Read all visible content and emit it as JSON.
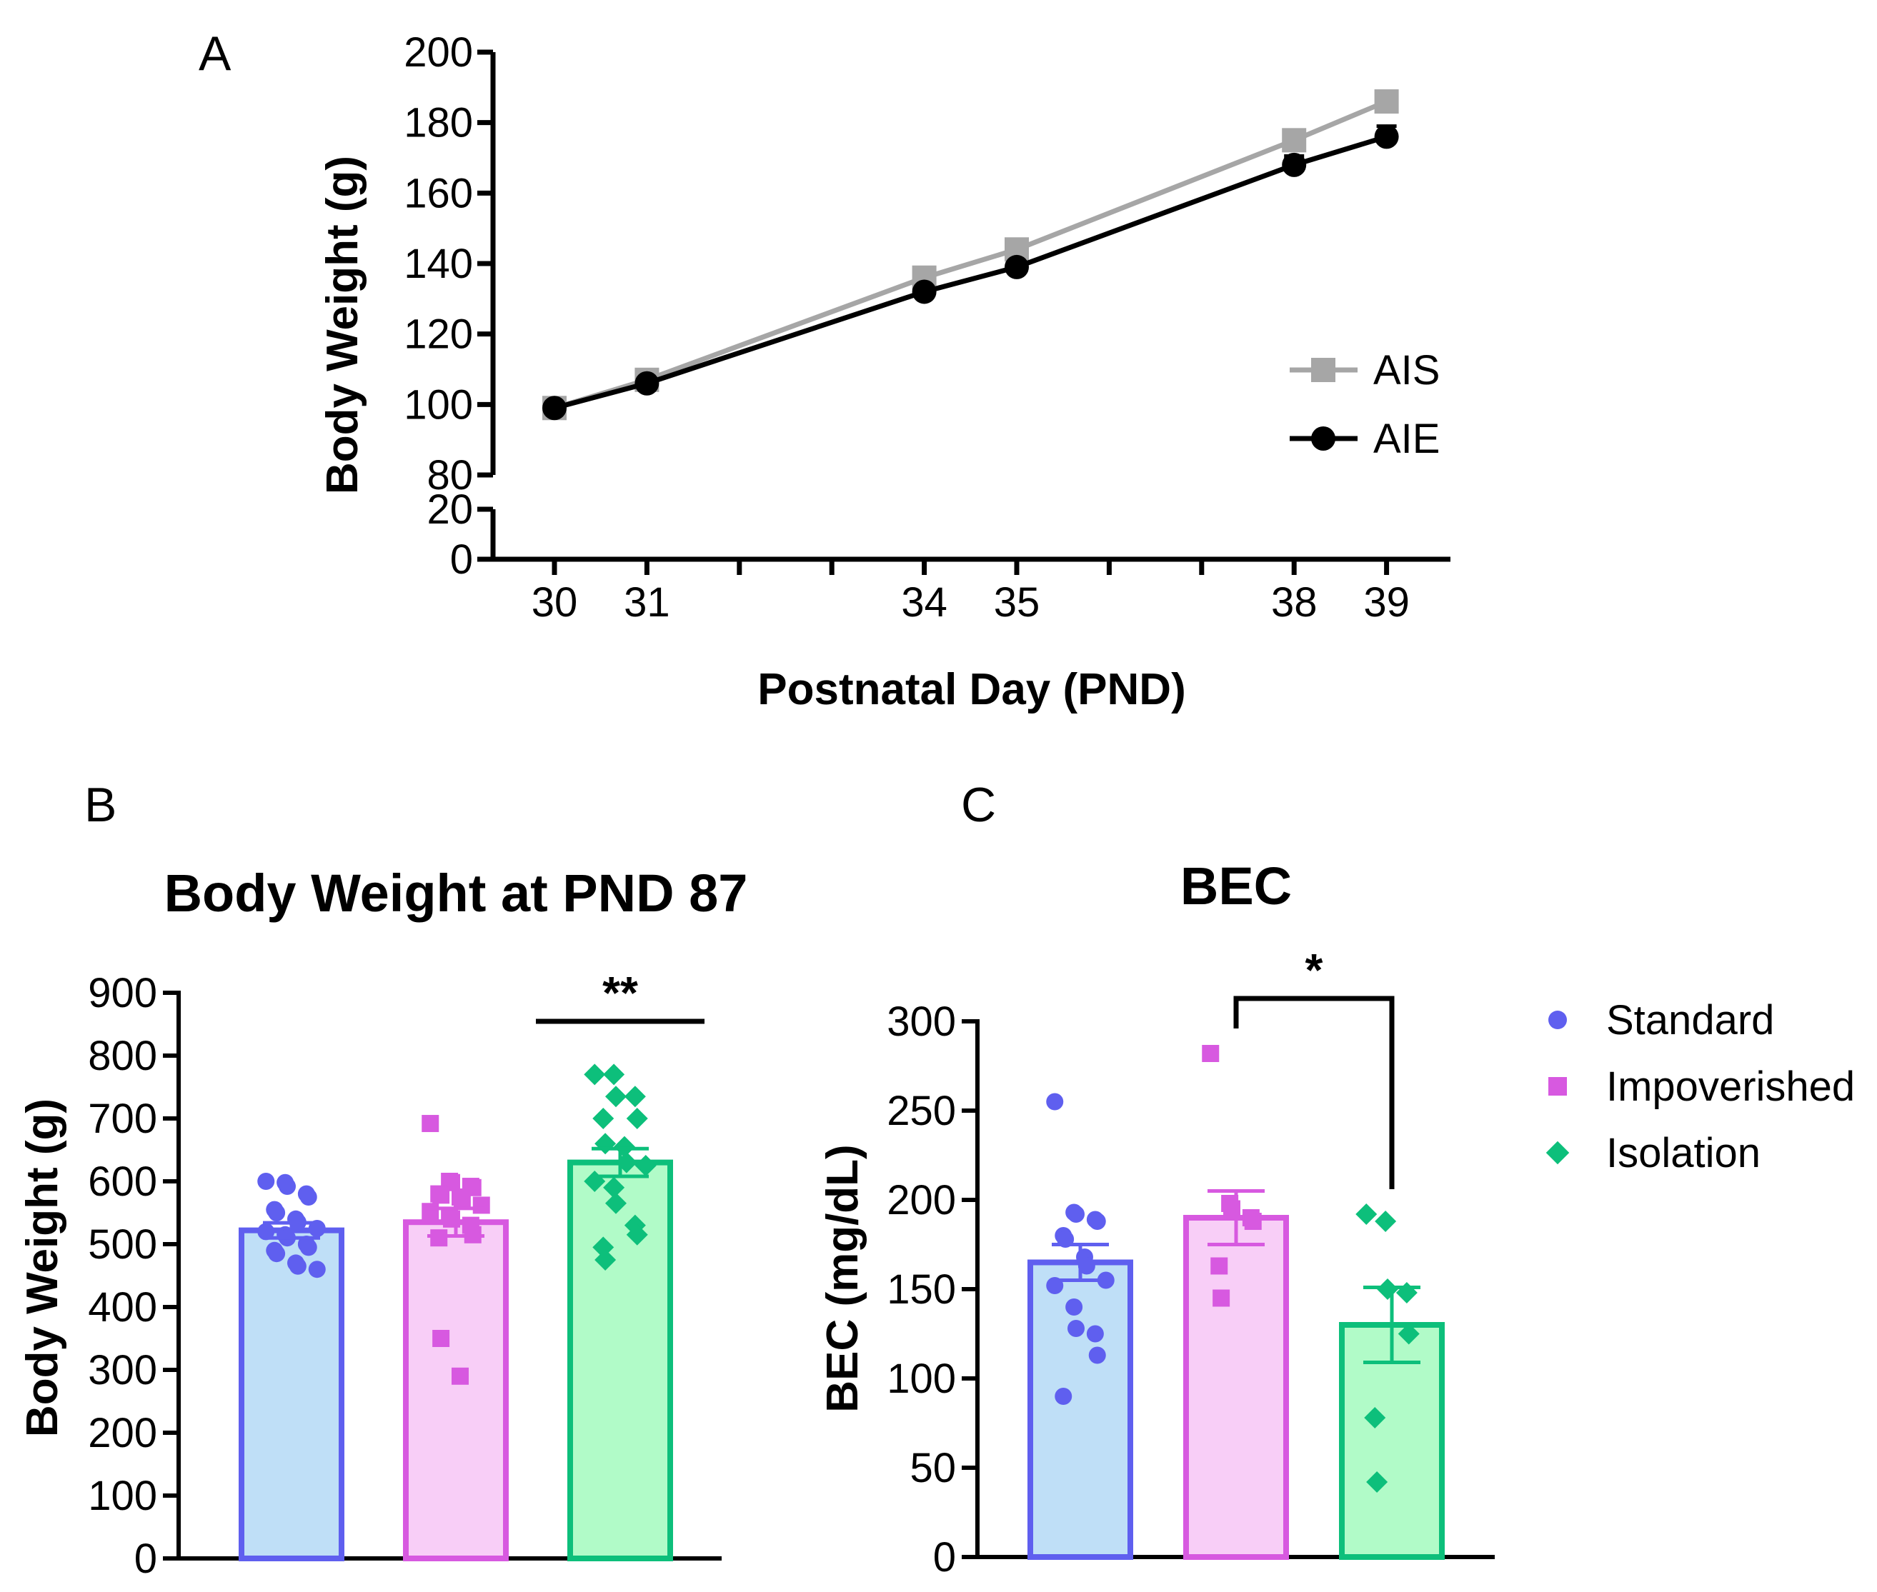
{
  "chart_data": [
    {
      "panel": "A",
      "type": "line",
      "title": "",
      "xlabel": "Postnatal Day (PND)",
      "ylabel": "Body Weight (g)",
      "x_ticks": [
        30,
        31,
        34,
        35,
        38,
        39
      ],
      "x_minor_ticks": [
        32,
        33,
        36,
        37
      ],
      "xlim": [
        29.3,
        39.7
      ],
      "y_ticks_upper": [
        80,
        100,
        120,
        140,
        160,
        180,
        200
      ],
      "y_ticks_lower": [
        0,
        20
      ],
      "ylim_upper": [
        80,
        200
      ],
      "ylim_lower": [
        0,
        20
      ],
      "axis_break": "between 20 and 80",
      "legend_position": "right",
      "series": [
        {
          "name": "AIS",
          "color": "#a6a6a6",
          "marker": "square",
          "x": [
            30,
            31,
            34,
            35,
            38,
            39
          ],
          "y": [
            99,
            107,
            136,
            144,
            175,
            186
          ],
          "sem": [
            1,
            1,
            1.5,
            1.5,
            2,
            2
          ]
        },
        {
          "name": "AIE",
          "color": "#000000",
          "marker": "circle",
          "x": [
            30,
            31,
            34,
            35,
            38,
            39
          ],
          "y": [
            99,
            106,
            132,
            139,
            168,
            176
          ],
          "sem": [
            1,
            1,
            1.5,
            1.5,
            2.5,
            3
          ]
        }
      ]
    },
    {
      "panel": "B",
      "type": "bar",
      "title": "Body Weight at PND 87",
      "xlabel": "",
      "ylabel": "Body Weight (g)",
      "ylim": [
        0,
        900
      ],
      "y_ticks": [
        0,
        100,
        200,
        300,
        400,
        500,
        600,
        700,
        800,
        900
      ],
      "categories": [
        "Standard",
        "Impoverished",
        "Isolation"
      ],
      "values": [
        522,
        535,
        630
      ],
      "sem": [
        12,
        22,
        22
      ],
      "points": [
        [
          600,
          598,
          592,
          580,
          575,
          555,
          550,
          540,
          535,
          525,
          520,
          515,
          510,
          500,
          495,
          490,
          485,
          470,
          465,
          460
        ],
        [
          692,
          600,
          598,
          592,
          590,
          580,
          578,
          575,
          570,
          562,
          552,
          545,
          540,
          530,
          515,
          510,
          350,
          290
        ],
        [
          770,
          770,
          735,
          735,
          700,
          700,
          660,
          655,
          630,
          625,
          600,
          590,
          565,
          530,
          515,
          495,
          475
        ]
      ],
      "significance": [
        {
          "label": "**",
          "group": "Isolation"
        }
      ]
    },
    {
      "panel": "C",
      "type": "bar",
      "title": "BEC",
      "xlabel": "",
      "ylabel": "BEC (mg/dL)",
      "ylim": [
        0,
        300
      ],
      "y_ticks": [
        0,
        50,
        100,
        150,
        200,
        250,
        300
      ],
      "categories": [
        "Standard",
        "Impoverished",
        "Isolation"
      ],
      "values": [
        165,
        190,
        130
      ],
      "sem": [
        10,
        15,
        21
      ],
      "points": [
        [
          255,
          193,
          192,
          189,
          188,
          180,
          178,
          168,
          163,
          155,
          152,
          140,
          128,
          125,
          113,
          90
        ],
        [
          282,
          198,
          195,
          190,
          188,
          163,
          145
        ],
        [
          192,
          188,
          150,
          148,
          125,
          78,
          42
        ]
      ],
      "significance": [
        {
          "label": "*",
          "from": "Impoverished",
          "to": "Isolation"
        }
      ],
      "legend": [
        "Standard",
        "Impoverished",
        "Isolation"
      ],
      "legend_position": "right"
    }
  ],
  "groups": {
    "colors": {
      "Standard": {
        "stroke": "#5f5fef",
        "fill": "#bfdff7",
        "point": "#5f5fef"
      },
      "Impoverished": {
        "stroke": "#d759e0",
        "fill": "#f8cef7",
        "point": "#d759e0"
      },
      "Isolation": {
        "stroke": "#0dbf7b",
        "fill": "#b1fbc8",
        "point": "#0dbf7b"
      }
    }
  },
  "panel_labels": [
    "A",
    "B",
    "C"
  ]
}
